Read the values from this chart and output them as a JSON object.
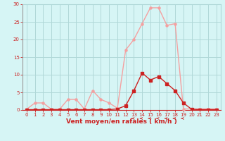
{
  "xlabel": "Vent moyen/en rafales ( km/h )",
  "background_color": "#d6f5f5",
  "grid_color": "#b0d8d8",
  "x": [
    0,
    1,
    2,
    3,
    4,
    5,
    6,
    7,
    8,
    9,
    10,
    11,
    12,
    13,
    14,
    15,
    16,
    17,
    18,
    19,
    20,
    21,
    22,
    23
  ],
  "y_light": [
    0.2,
    2.0,
    2.0,
    0.2,
    0.2,
    3.0,
    3.0,
    0.3,
    5.5,
    3.0,
    2.0,
    0.5,
    17.0,
    20.0,
    24.5,
    29.0,
    29.0,
    24.0,
    24.5,
    0.3,
    0.3,
    0.3,
    0.3,
    0.3
  ],
  "y_dark": [
    0.1,
    0.1,
    0.1,
    0.1,
    0.1,
    0.1,
    0.1,
    0.1,
    0.1,
    0.1,
    0.1,
    0.3,
    1.2,
    5.5,
    10.5,
    8.5,
    9.5,
    7.5,
    5.5,
    2.0,
    0.2,
    0.1,
    0.1,
    0.1
  ],
  "light_color": "#f4a0a0",
  "dark_color": "#cc2222",
  "ylim": [
    0,
    30
  ],
  "xlim": [
    -0.5,
    23.5
  ],
  "yticks": [
    0,
    5,
    10,
    15,
    20,
    25,
    30
  ],
  "xticks": [
    0,
    1,
    2,
    3,
    4,
    5,
    6,
    7,
    8,
    9,
    10,
    11,
    12,
    13,
    14,
    15,
    16,
    17,
    18,
    19,
    20,
    21,
    22,
    23
  ],
  "tick_color": "#cc2222",
  "tick_fontsize": 5.0,
  "xlabel_fontsize": 6.5,
  "line_width": 1.0,
  "marker_size": 2.2
}
